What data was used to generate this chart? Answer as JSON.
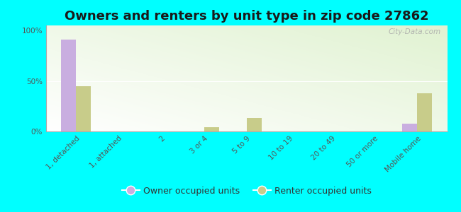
{
  "title": "Owners and renters by unit type in zip code 27862",
  "categories": [
    "1, detached",
    "1, attached",
    "2",
    "3 or 4",
    "5 to 9",
    "10 to 19",
    "20 to 49",
    "50 or more",
    "Mobile home"
  ],
  "owner_values": [
    91,
    0,
    0,
    0,
    0,
    0,
    0,
    0,
    8
  ],
  "renter_values": [
    45,
    0,
    0,
    4,
    13,
    0,
    0,
    0,
    38
  ],
  "owner_color": "#c9aee0",
  "renter_color": "#c8cc8a",
  "background_color": "#00ffff",
  "ylabel_ticks": [
    "0%",
    "50%",
    "100%"
  ],
  "ytick_values": [
    0,
    50,
    100
  ],
  "ylim": [
    0,
    105
  ],
  "bar_width": 0.35,
  "title_fontsize": 13,
  "tick_fontsize": 7.5,
  "legend_fontsize": 9,
  "watermark": "City-Data.com"
}
